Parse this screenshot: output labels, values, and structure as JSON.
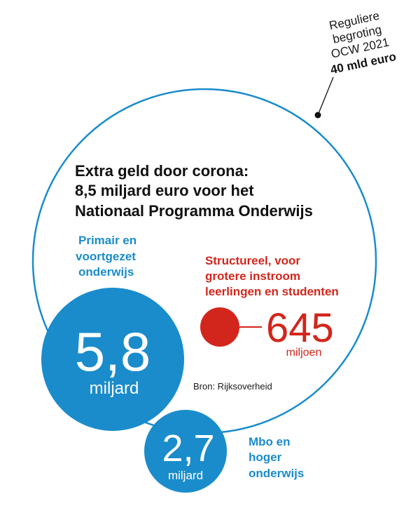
{
  "colors": {
    "blue": "#1a8ccc",
    "red": "#d2261c",
    "outline": "#1a8ccc",
    "text": "#111111"
  },
  "budget_note": {
    "lines": [
      "Reguliere",
      "begroting",
      "OCW 2021"
    ],
    "value": "40 mld euro"
  },
  "title": {
    "lines": [
      "Extra geld door corona:",
      "8,5 miljard euro voor het",
      "Nationaal Programma Onderwijs"
    ]
  },
  "segments": [
    {
      "label_lines": [
        "Primair en",
        "voortgezet",
        "onderwijs"
      ],
      "value": "5,8",
      "unit": "miljard",
      "color": "#1a8ccc"
    },
    {
      "label_lines": [
        "Mbo en",
        "hoger",
        "onderwijs"
      ],
      "value": "2,7",
      "unit": "miljard",
      "color": "#1a8ccc"
    },
    {
      "label_lines": [
        "Structureel, voor",
        "grotere instroom",
        "leerlingen en studenten"
      ],
      "value": "645",
      "unit": "miljoen",
      "color": "#d2261c"
    }
  ],
  "source": "Bron: Rijksoverheid"
}
